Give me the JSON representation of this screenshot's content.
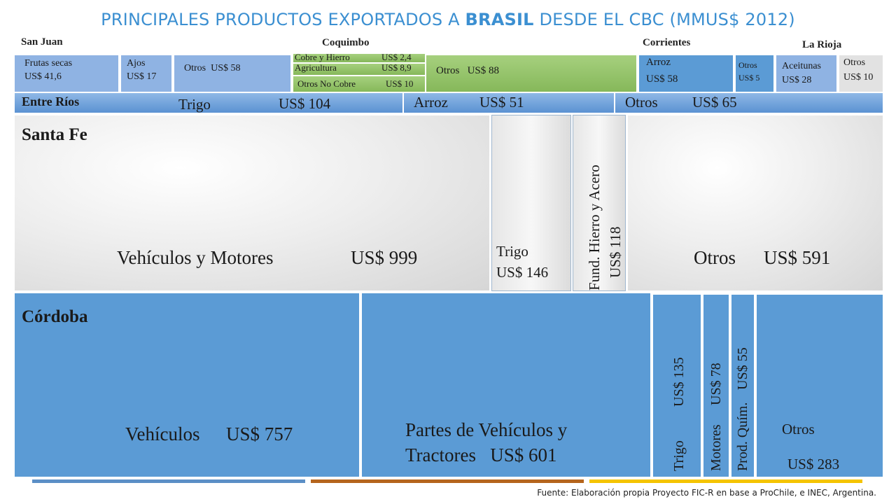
{
  "title": {
    "pre": "PRINCIPALES PRODUCTOS EXPORTADOS A ",
    "bold": "BRASIL",
    "post": " DESDE EL CBC (MMUS$ 2012)"
  },
  "source": "Fuente: Elaboración propia Proyecto FIC-R en base a  ProChile, e INEC,  Argentina.",
  "colors": {
    "title": "#3b8fd1",
    "cordoba": "#5b9bd5",
    "coquimbo": "#8dc065",
    "santa_fe": "#e0e0e0",
    "footer_blue": "#5b8fc6",
    "footer_brown": "#b5651d",
    "footer_yellow": "#f5c400"
  },
  "chart_data": {
    "type": "treemap",
    "unit": "MMUS$ 2012",
    "regions": [
      {
        "name": "San Juan",
        "items": [
          {
            "label": "Frutas secas",
            "value_text": "US$ 41,6",
            "value": 41.6
          },
          {
            "label": "Ajos",
            "value_text": "US$ 17",
            "value": 17
          }
        ]
      },
      {
        "name": "Coquimbo",
        "items": [
          {
            "label": "Otros",
            "value_text": "US$ 58",
            "value": 58
          },
          {
            "label": "Cobre y Hierro",
            "value_text": "US$ 2,4",
            "value": 2.4
          },
          {
            "label": "Agricultura",
            "value_text": "US$ 8,9",
            "value": 8.9
          },
          {
            "label": "Otros No Cobre",
            "value_text": "US$ 10",
            "value": 10
          },
          {
            "label": "Otros",
            "value_text": "US$ 88",
            "value": 88
          }
        ]
      },
      {
        "name": "Corrientes",
        "items": [
          {
            "label": "Arroz",
            "value_text": "US$ 58",
            "value": 58
          },
          {
            "label": "Otros",
            "value_text": "US$ 5",
            "value": 5
          }
        ]
      },
      {
        "name": "La Rioja",
        "items": [
          {
            "label": "Aceitunas",
            "value_text": "US$ 28",
            "value": 28
          },
          {
            "label": "Otros",
            "value_text": "US$ 10",
            "value": 10
          }
        ]
      },
      {
        "name": "Entre Ríos",
        "items": [
          {
            "label": "Trigo",
            "value_text": "US$ 104",
            "value": 104
          },
          {
            "label": "Arroz",
            "value_text": "US$ 51",
            "value": 51
          },
          {
            "label": "Otros",
            "value_text": "US$ 65",
            "value": 65
          }
        ]
      },
      {
        "name": "Santa Fe",
        "items": [
          {
            "label": "Vehículos y Motores",
            "value_text": "US$ 999",
            "value": 999
          },
          {
            "label": "Trigo",
            "value_text": "US$ 146",
            "value": 146
          },
          {
            "label": "Fund. Hierro y Acero",
            "value_text": "US$ 118",
            "value": 118
          },
          {
            "label": "Otros",
            "value_text": "US$ 591",
            "value": 591
          }
        ]
      },
      {
        "name": "Córdoba",
        "items": [
          {
            "label": "Vehículos",
            "value_text": "US$ 757",
            "value": 757
          },
          {
            "label": "Partes de Vehículos y",
            "label2": "Tractores",
            "value_text": "US$ 601",
            "value": 601
          },
          {
            "label": "Trigo",
            "value_text": "US$ 135",
            "value": 135
          },
          {
            "label": "Motores",
            "value_text": "US$ 78",
            "value": 78
          },
          {
            "label": "Prod. Quím.",
            "value_text": "US$ 55",
            "value": 55
          },
          {
            "label": "Otros",
            "value_text": "US$ 283",
            "value": 283
          }
        ]
      }
    ]
  }
}
